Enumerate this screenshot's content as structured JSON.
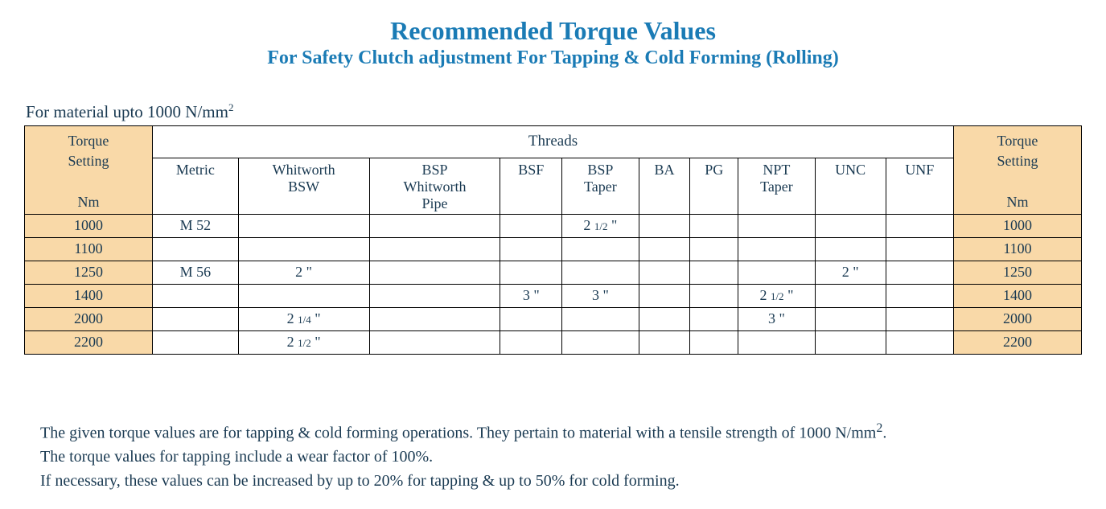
{
  "title": "Recommended Torque Values",
  "subtitle": "For Safety Clutch adjustment For Tapping & Cold Forming (Rolling)",
  "material_note": "For material upto 1000 N/mm²",
  "table": {
    "torque_header_line1": "Torque",
    "torque_header_line2": "Setting",
    "torque_header_unit": "Nm",
    "threads_header": "Threads",
    "columns": [
      {
        "line1": "Metric",
        "line2": ""
      },
      {
        "line1": "Whitworth",
        "line2": "BSW"
      },
      {
        "line1": "BSP",
        "line2": "Whitworth",
        "line3": "Pipe"
      },
      {
        "line1": "BSF",
        "line2": ""
      },
      {
        "line1": "BSP",
        "line2": "Taper"
      },
      {
        "line1": "BA",
        "line2": ""
      },
      {
        "line1": "PG",
        "line2": ""
      },
      {
        "line1": "NPT",
        "line2": "Taper"
      },
      {
        "line1": "UNC",
        "line2": ""
      },
      {
        "line1": "UNF",
        "line2": ""
      }
    ],
    "rows": [
      {
        "torque": "1000",
        "cells": [
          "M 52",
          "",
          "",
          "",
          "2 1/2 \"",
          "",
          "",
          "",
          "",
          ""
        ]
      },
      {
        "torque": "1100",
        "cells": [
          "",
          "",
          "",
          "",
          "",
          "",
          "",
          "",
          "",
          ""
        ]
      },
      {
        "torque": "1250",
        "cells": [
          "M 56",
          "2 \"",
          "",
          "",
          "",
          "",
          "",
          "",
          "2 \"",
          ""
        ]
      },
      {
        "torque": "1400",
        "cells": [
          "",
          "",
          "",
          "3 \"",
          "3 \"",
          "",
          "",
          "2 1/2 \"",
          "",
          ""
        ]
      },
      {
        "torque": "2000",
        "cells": [
          "",
          "2 1/4 \"",
          "",
          "",
          "",
          "",
          "",
          "3 \"",
          "",
          ""
        ]
      },
      {
        "torque": "2200",
        "cells": [
          "",
          "2 1/2 \"",
          "",
          "",
          "",
          "",
          "",
          "",
          "",
          ""
        ]
      }
    ]
  },
  "notes": {
    "line1_a": "The given torque values are for tapping & cold forming operations. They pertain to material with a tensile strength of 1000 N/mm",
    "line1_sup": "2",
    "line1_b": ".",
    "line2": "The torque values for tapping include a wear factor of 100%.",
    "line3": "If necessary, these values can be increased by up to 20% for tapping & up to 50% for cold forming."
  },
  "colors": {
    "title_color": "#1a7bb5",
    "text_color": "#1a3a52",
    "torque_bg": "#f9d9a8",
    "border_color": "#000000"
  }
}
